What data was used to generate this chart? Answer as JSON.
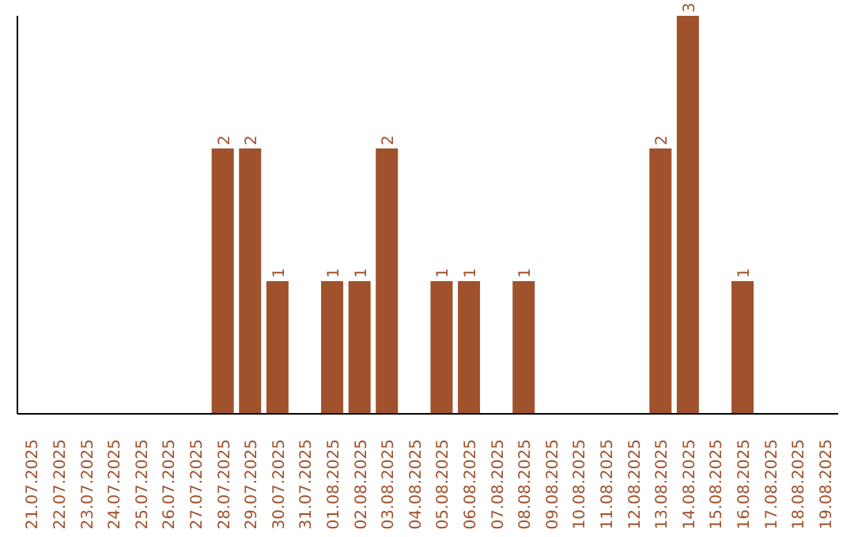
{
  "chart_data": {
    "type": "bar",
    "categories": [
      "21.07.2025",
      "22.07.2025",
      "23.07.2025",
      "24.07.2025",
      "25.07.2025",
      "26.07.2025",
      "27.07.2025",
      "28.07.2025",
      "29.07.2025",
      "30.07.2025",
      "31.07.2025",
      "01.08.2025",
      "02.08.2025",
      "03.08.2025",
      "04.08.2025",
      "05.08.2025",
      "06.08.2025",
      "07.08.2025",
      "08.08.2025",
      "09.08.2025",
      "10.08.2025",
      "11.08.2025",
      "12.08.2025",
      "13.08.2025",
      "14.08.2025",
      "15.08.2025",
      "16.08.2025",
      "17.08.2025",
      "18.08.2025",
      "19.08.2025"
    ],
    "values": [
      0,
      0,
      0,
      0,
      0,
      0,
      0,
      2,
      2,
      1,
      0,
      1,
      1,
      2,
      0,
      1,
      1,
      0,
      1,
      0,
      0,
      0,
      0,
      2,
      3,
      0,
      1,
      0,
      0,
      0
    ],
    "value_labels": [
      null,
      null,
      null,
      null,
      null,
      null,
      null,
      "2",
      "2",
      "1",
      null,
      "1",
      "1",
      "2",
      null,
      "1",
      "1",
      null,
      "1",
      null,
      null,
      null,
      null,
      "2",
      "3",
      null,
      "1",
      null,
      null,
      null
    ],
    "color": "#a0522d",
    "grid": false,
    "legend": false
  }
}
